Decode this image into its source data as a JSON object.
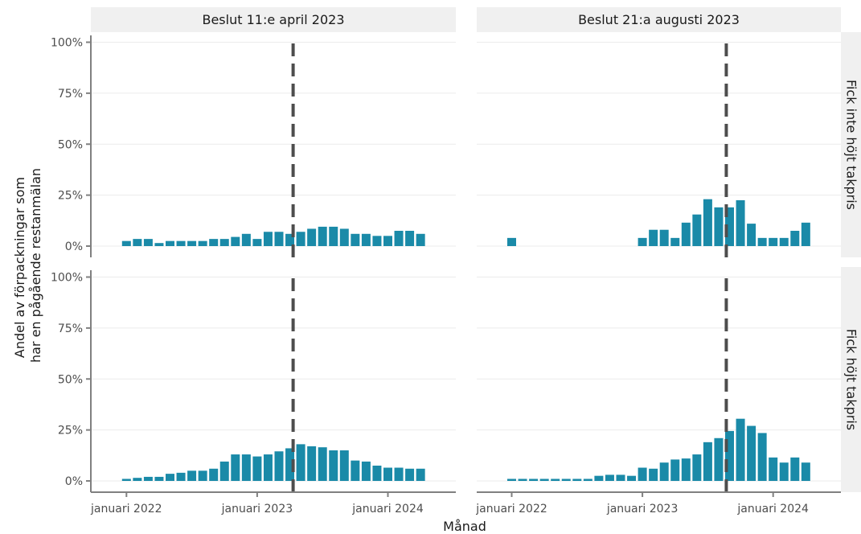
{
  "chart_data": {
    "type": "bar",
    "xlabel": "Månad",
    "ylabel_lines": [
      "Andel av förpackningar som",
      "har en pågående restanmälan"
    ],
    "y_ticks": [
      "0%",
      "25%",
      "50%",
      "75%",
      "100%"
    ],
    "ylim": [
      0,
      100
    ],
    "x_ticks": [
      {
        "label": "januari 2022",
        "month": 0
      },
      {
        "label": "januari 2023",
        "month": 12
      },
      {
        "label": "januari 2024",
        "month": 24
      }
    ],
    "bar_color": "#1a8aa8",
    "decision_line_color": "#4d4d4d",
    "columns": [
      {
        "label": "Beslut 11:e april 2023",
        "decision_month": 15.3
      },
      {
        "label": "Beslut 21:a augusti 2023",
        "decision_month": 19.7
      }
    ],
    "rows": [
      {
        "label": "Fick inte höjt takpris"
      },
      {
        "label": "Fick höjt takpris"
      }
    ],
    "panels": [
      {
        "row": 0,
        "col": 0,
        "bars": [
          {
            "month": 0,
            "value": 2.5
          },
          {
            "month": 1,
            "value": 3.5
          },
          {
            "month": 2,
            "value": 3.5
          },
          {
            "month": 3,
            "value": 1.5
          },
          {
            "month": 4,
            "value": 2.5
          },
          {
            "month": 5,
            "value": 2.5
          },
          {
            "month": 6,
            "value": 2.5
          },
          {
            "month": 7,
            "value": 2.5
          },
          {
            "month": 8,
            "value": 3.5
          },
          {
            "month": 9,
            "value": 3.5
          },
          {
            "month": 10,
            "value": 4.5
          },
          {
            "month": 11,
            "value": 6
          },
          {
            "month": 12,
            "value": 3.5
          },
          {
            "month": 13,
            "value": 7
          },
          {
            "month": 14,
            "value": 7
          },
          {
            "month": 15,
            "value": 6
          },
          {
            "month": 16,
            "value": 7
          },
          {
            "month": 17,
            "value": 8.5
          },
          {
            "month": 18,
            "value": 9.5
          },
          {
            "month": 19,
            "value": 9.5
          },
          {
            "month": 20,
            "value": 8.5
          },
          {
            "month": 21,
            "value": 6
          },
          {
            "month": 22,
            "value": 6
          },
          {
            "month": 23,
            "value": 5
          },
          {
            "month": 24,
            "value": 5
          },
          {
            "month": 25,
            "value": 7.5
          },
          {
            "month": 26,
            "value": 7.5
          },
          {
            "month": 27,
            "value": 6
          }
        ]
      },
      {
        "row": 0,
        "col": 1,
        "bars": [
          {
            "month": 0,
            "value": 4
          },
          {
            "month": 12,
            "value": 4
          },
          {
            "month": 13,
            "value": 8
          },
          {
            "month": 14,
            "value": 8
          },
          {
            "month": 15,
            "value": 4
          },
          {
            "month": 16,
            "value": 11.5
          },
          {
            "month": 17,
            "value": 15.5
          },
          {
            "month": 18,
            "value": 23
          },
          {
            "month": 19,
            "value": 19
          },
          {
            "month": 20,
            "value": 19
          },
          {
            "month": 21,
            "value": 22.5
          },
          {
            "month": 22,
            "value": 11
          },
          {
            "month": 23,
            "value": 4
          },
          {
            "month": 24,
            "value": 4
          },
          {
            "month": 25,
            "value": 4
          },
          {
            "month": 26,
            "value": 7.5
          },
          {
            "month": 27,
            "value": 11.5
          }
        ]
      },
      {
        "row": 1,
        "col": 0,
        "bars": [
          {
            "month": 0,
            "value": 1
          },
          {
            "month": 1,
            "value": 1.5
          },
          {
            "month": 2,
            "value": 2
          },
          {
            "month": 3,
            "value": 2
          },
          {
            "month": 4,
            "value": 3.5
          },
          {
            "month": 5,
            "value": 4
          },
          {
            "month": 6,
            "value": 5
          },
          {
            "month": 7,
            "value": 5
          },
          {
            "month": 8,
            "value": 6
          },
          {
            "month": 9,
            "value": 9.5
          },
          {
            "month": 10,
            "value": 13
          },
          {
            "month": 11,
            "value": 13
          },
          {
            "month": 12,
            "value": 12
          },
          {
            "month": 13,
            "value": 13
          },
          {
            "month": 14,
            "value": 14.5
          },
          {
            "month": 15,
            "value": 16
          },
          {
            "month": 16,
            "value": 18
          },
          {
            "month": 17,
            "value": 17
          },
          {
            "month": 18,
            "value": 16.5
          },
          {
            "month": 19,
            "value": 15
          },
          {
            "month": 20,
            "value": 15
          },
          {
            "month": 21,
            "value": 10
          },
          {
            "month": 22,
            "value": 9.5
          },
          {
            "month": 23,
            "value": 7.5
          },
          {
            "month": 24,
            "value": 6.5
          },
          {
            "month": 25,
            "value": 6.5
          },
          {
            "month": 26,
            "value": 6
          },
          {
            "month": 27,
            "value": 6
          }
        ]
      },
      {
        "row": 1,
        "col": 1,
        "bars": [
          {
            "month": 0,
            "value": 1
          },
          {
            "month": 1,
            "value": 1
          },
          {
            "month": 2,
            "value": 1
          },
          {
            "month": 3,
            "value": 1
          },
          {
            "month": 4,
            "value": 1
          },
          {
            "month": 5,
            "value": 1
          },
          {
            "month": 6,
            "value": 1
          },
          {
            "month": 7,
            "value": 1
          },
          {
            "month": 8,
            "value": 2.5
          },
          {
            "month": 9,
            "value": 3
          },
          {
            "month": 10,
            "value": 3
          },
          {
            "month": 11,
            "value": 2.5
          },
          {
            "month": 12,
            "value": 6.5
          },
          {
            "month": 13,
            "value": 6
          },
          {
            "month": 14,
            "value": 9
          },
          {
            "month": 15,
            "value": 10.5
          },
          {
            "month": 16,
            "value": 11
          },
          {
            "month": 17,
            "value": 13
          },
          {
            "month": 18,
            "value": 19
          },
          {
            "month": 19,
            "value": 21
          },
          {
            "month": 20,
            "value": 24.5
          },
          {
            "month": 21,
            "value": 30.5
          },
          {
            "month": 22,
            "value": 27
          },
          {
            "month": 23,
            "value": 23.5
          },
          {
            "month": 24,
            "value": 11.5
          },
          {
            "month": 25,
            "value": 9
          },
          {
            "month": 26,
            "value": 11.5
          },
          {
            "month": 27,
            "value": 9
          }
        ]
      }
    ]
  }
}
